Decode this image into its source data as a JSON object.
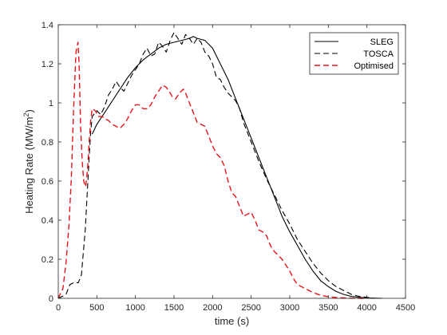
{
  "chart_data": {
    "type": "line",
    "xlabel": "time (s)",
    "ylabel_main": "Heating Rate (MW/m",
    "ylabel_sup": "2",
    "ylabel_end": ")",
    "xlim": [
      0,
      4500
    ],
    "ylim": [
      0,
      1.4
    ],
    "xticks": [
      0,
      500,
      1000,
      1500,
      2000,
      2500,
      3000,
      3500,
      4000,
      4500
    ],
    "yticks": [
      0,
      0.2,
      0.4,
      0.6,
      0.8,
      1.0,
      1.2,
      1.4
    ],
    "xtick_labels": [
      "0",
      "500",
      "1000",
      "1500",
      "2000",
      "2500",
      "3000",
      "3500",
      "4000",
      "4500"
    ],
    "ytick_labels": [
      "0",
      "0.2",
      "0.4",
      "0.6",
      "0.8",
      "1",
      "1.2",
      "1.4"
    ],
    "grid": false,
    "legend_position": "top-right",
    "series": [
      {
        "name": "SLEG",
        "color": "#000000",
        "dash": "solid",
        "x": [
          440,
          500,
          600,
          700,
          800,
          900,
          1000,
          1100,
          1200,
          1300,
          1400,
          1500,
          1600,
          1700,
          1750,
          1800,
          1900,
          2000,
          2100,
          2200,
          2300,
          2400,
          2500,
          2600,
          2700,
          2800,
          2900,
          3000,
          3100,
          3200,
          3300,
          3400,
          3500,
          3600,
          3700,
          3800,
          3900,
          4000,
          4100,
          4200
        ],
        "y": [
          0.84,
          0.89,
          0.95,
          1.01,
          1.07,
          1.13,
          1.18,
          1.22,
          1.25,
          1.28,
          1.3,
          1.31,
          1.32,
          1.33,
          1.34,
          1.33,
          1.32,
          1.28,
          1.2,
          1.12,
          1.02,
          0.92,
          0.82,
          0.72,
          0.62,
          0.52,
          0.42,
          0.34,
          0.27,
          0.2,
          0.14,
          0.09,
          0.06,
          0.035,
          0.02,
          0.01,
          0.005,
          0.002,
          0.001,
          0.0
        ]
      },
      {
        "name": "TOSCA",
        "color": "#000000",
        "dash": "dashed",
        "x": [
          0,
          100,
          150,
          200,
          260,
          300,
          350,
          400,
          420,
          440,
          500,
          550,
          600,
          650,
          700,
          750,
          800,
          850,
          900,
          950,
          1000,
          1050,
          1100,
          1150,
          1200,
          1250,
          1300,
          1350,
          1400,
          1450,
          1500,
          1550,
          1600,
          1650,
          1700,
          1750,
          1800,
          1850,
          1900,
          1950,
          2000,
          2050,
          2100,
          2150,
          2200,
          2250,
          2300,
          2350,
          2400,
          2450,
          2500,
          2600,
          2700,
          2800,
          2900,
          3000,
          3100,
          3200,
          3300,
          3400,
          3500,
          3600,
          3700,
          3800,
          3900,
          4000,
          4100
        ],
        "y": [
          0.0,
          0.02,
          0.07,
          0.08,
          0.08,
          0.12,
          0.35,
          0.72,
          0.85,
          0.93,
          0.96,
          0.94,
          0.98,
          1.04,
          1.07,
          1.11,
          1.08,
          1.06,
          1.1,
          1.14,
          1.17,
          1.2,
          1.25,
          1.28,
          1.24,
          1.25,
          1.31,
          1.29,
          1.26,
          1.32,
          1.36,
          1.33,
          1.3,
          1.35,
          1.33,
          1.3,
          1.33,
          1.31,
          1.26,
          1.24,
          1.2,
          1.13,
          1.12,
          1.08,
          1.05,
          1.03,
          1.01,
          0.97,
          0.9,
          0.85,
          0.8,
          0.7,
          0.61,
          0.53,
          0.45,
          0.38,
          0.3,
          0.24,
          0.18,
          0.13,
          0.09,
          0.06,
          0.04,
          0.02,
          0.01,
          0.005,
          0.0
        ]
      },
      {
        "name": "Optimised",
        "color": "#e8141b",
        "dash": "dashed",
        "x": [
          0,
          60,
          100,
          140,
          170,
          200,
          230,
          255,
          270,
          290,
          310,
          330,
          355,
          380,
          400,
          420,
          440,
          480,
          520,
          570,
          600,
          650,
          700,
          750,
          800,
          850,
          900,
          950,
          1000,
          1050,
          1100,
          1150,
          1200,
          1250,
          1300,
          1350,
          1400,
          1450,
          1480,
          1520,
          1570,
          1620,
          1650,
          1700,
          1750,
          1800,
          1850,
          1900,
          1950,
          2000,
          2050,
          2100,
          2150,
          2200,
          2250,
          2300,
          2350,
          2400,
          2450,
          2500,
          2550,
          2600,
          2650,
          2700,
          2750,
          2800,
          2850,
          2900,
          2950,
          3000,
          3050,
          3100,
          3200,
          3300,
          3400,
          3500,
          3600,
          3700,
          3800,
          3900,
          4000
        ],
        "y": [
          0.0,
          0.05,
          0.18,
          0.38,
          0.62,
          0.98,
          1.26,
          1.31,
          1.2,
          0.88,
          0.7,
          0.6,
          0.57,
          0.66,
          0.8,
          0.91,
          0.97,
          0.96,
          0.93,
          0.93,
          0.92,
          0.91,
          0.89,
          0.88,
          0.87,
          0.89,
          0.92,
          0.96,
          0.99,
          0.99,
          0.97,
          0.97,
          0.99,
          1.03,
          1.06,
          1.09,
          1.08,
          1.05,
          1.03,
          1.02,
          1.05,
          1.07,
          1.05,
          1.0,
          0.95,
          0.9,
          0.89,
          0.88,
          0.83,
          0.78,
          0.74,
          0.72,
          0.68,
          0.6,
          0.54,
          0.52,
          0.47,
          0.42,
          0.43,
          0.44,
          0.4,
          0.35,
          0.34,
          0.32,
          0.27,
          0.24,
          0.22,
          0.2,
          0.17,
          0.14,
          0.1,
          0.07,
          0.05,
          0.03,
          0.015,
          0.008,
          0.004,
          0.002,
          0.001,
          0.0,
          0.0
        ]
      }
    ]
  }
}
